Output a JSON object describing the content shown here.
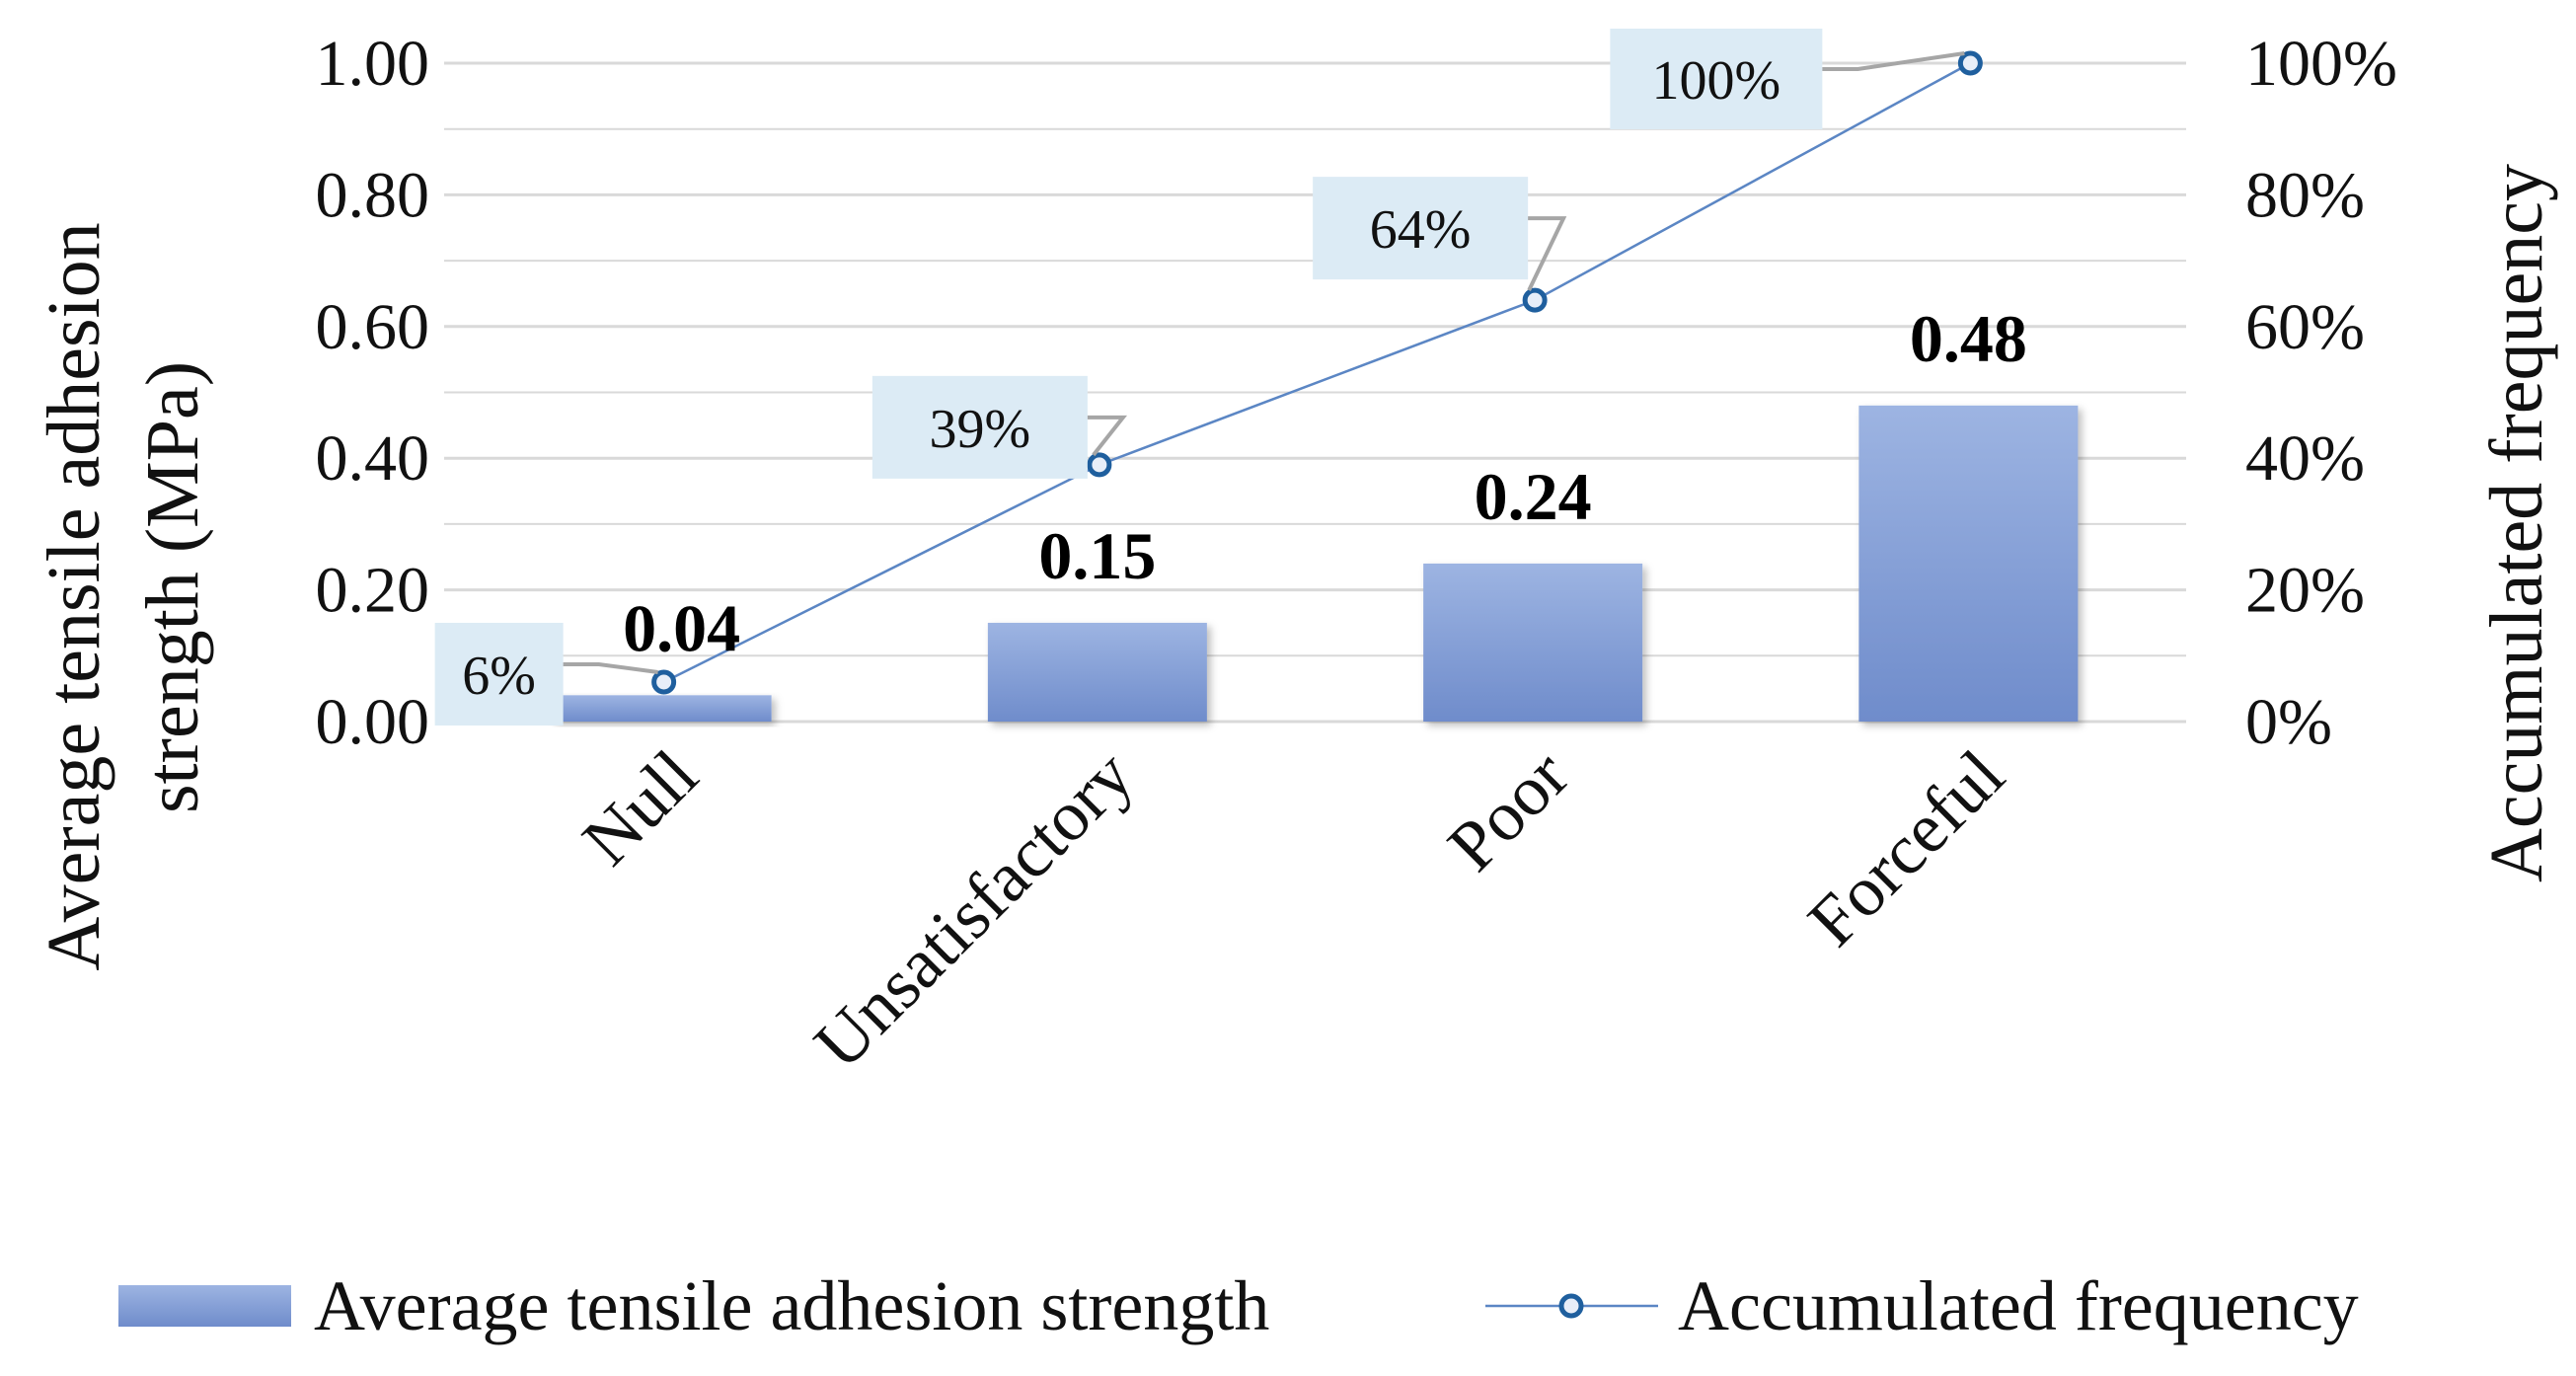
{
  "chart_data": {
    "type": "bar",
    "categories": [
      "Null",
      "Unsatisfactory",
      "Poor",
      "Forceful"
    ],
    "series": [
      {
        "name": "Average tensile adhesion strength",
        "type": "bar",
        "axis": "left",
        "values": [
          0.04,
          0.15,
          0.24,
          0.48
        ],
        "labels": [
          "0.04",
          "0.15",
          "0.24",
          "0.48"
        ],
        "color": "#7f9bd4"
      },
      {
        "name": "Accumulated frequency",
        "type": "line",
        "axis": "right",
        "values": [
          6,
          39,
          64,
          100
        ],
        "labels": [
          "6%",
          "39%",
          "64%",
          "100%"
        ],
        "color": "#5b86c4"
      }
    ],
    "ylabel": "Average tensile adhesion strength (MPa)",
    "ylabel_lines": [
      "Average tensile adhesion",
      "strength (MPa)"
    ],
    "y2label": "Accumulated frequency",
    "ylim": [
      0,
      1
    ],
    "y2lim": [
      0,
      100
    ],
    "yticks": [
      "0.00",
      "0.20",
      "0.40",
      "0.60",
      "0.80",
      "1.00"
    ],
    "y2ticks": [
      "0%",
      "20%",
      "40%",
      "60%",
      "80%",
      "100%"
    ],
    "grid": true,
    "legend": "bottom",
    "colors": {
      "bar_top": "#9db4e2",
      "bar_bottom": "#6f8ccb",
      "line": "#5b86c4",
      "marker_stroke": "#1f5f9e",
      "marker_fill": "#e8eef8",
      "gridline": "#d9d9d9",
      "label_box": "#dcebf5",
      "leader": "#a6a6a6"
    }
  }
}
